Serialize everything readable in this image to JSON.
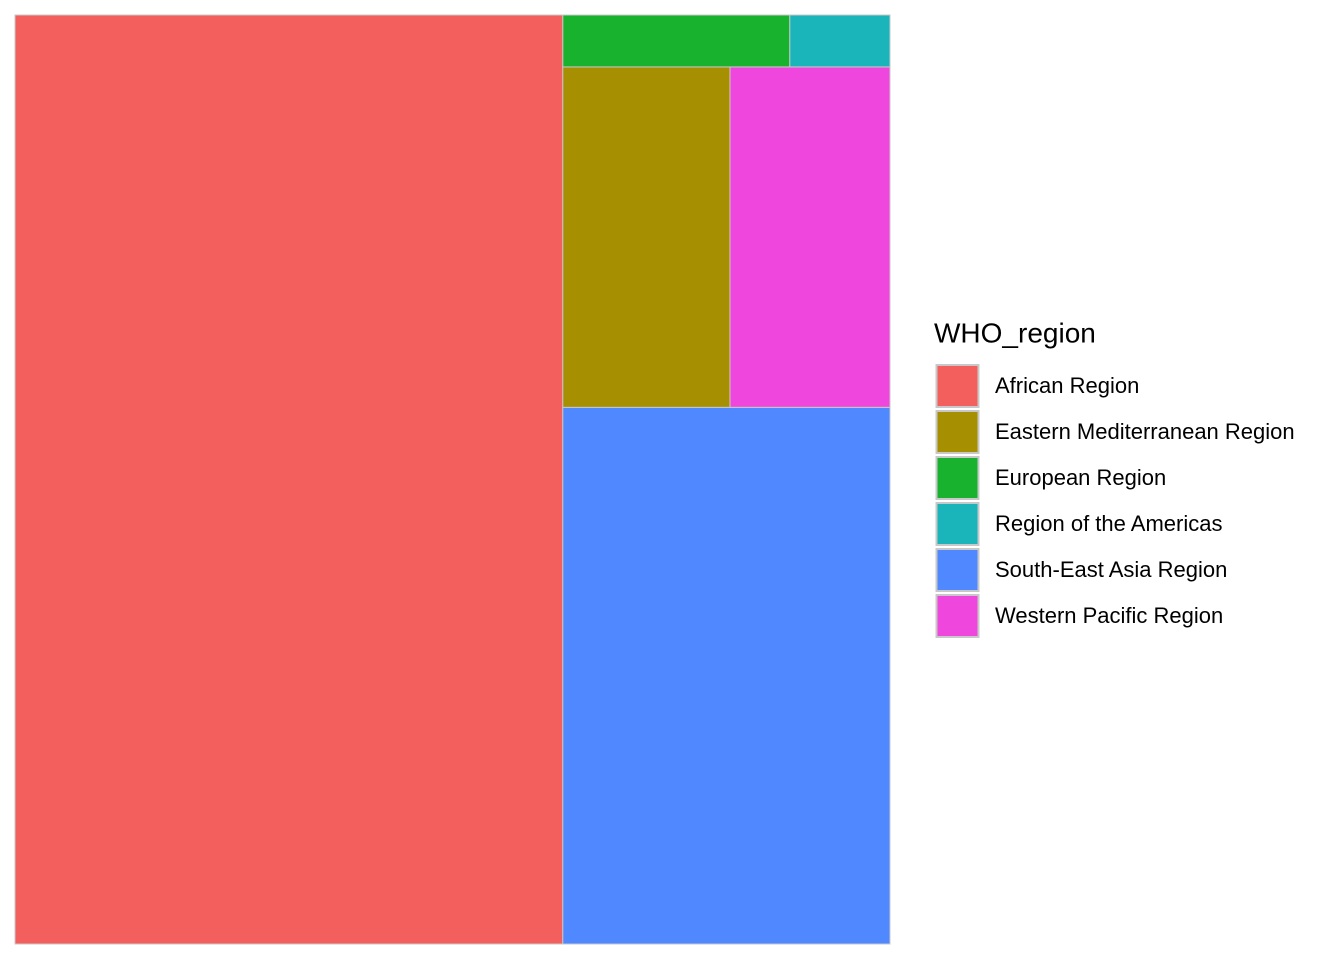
{
  "chart_data": {
    "type": "treemap",
    "legend_title": "WHO_region",
    "categories": [
      "African Region",
      "Eastern Mediterranean Region",
      "European Region",
      "Region of the Americas",
      "South-East Asia Region",
      "Western Pacific Region"
    ],
    "values": [
      62.6,
      7.0,
      1.45,
      0.64,
      21.6,
      6.7
    ],
    "colors": [
      "#f25f5c",
      "#a68f00",
      "#19b22f",
      "#1ab4bb",
      "#5088ff",
      "#ef46dd"
    ],
    "legend": "right"
  }
}
